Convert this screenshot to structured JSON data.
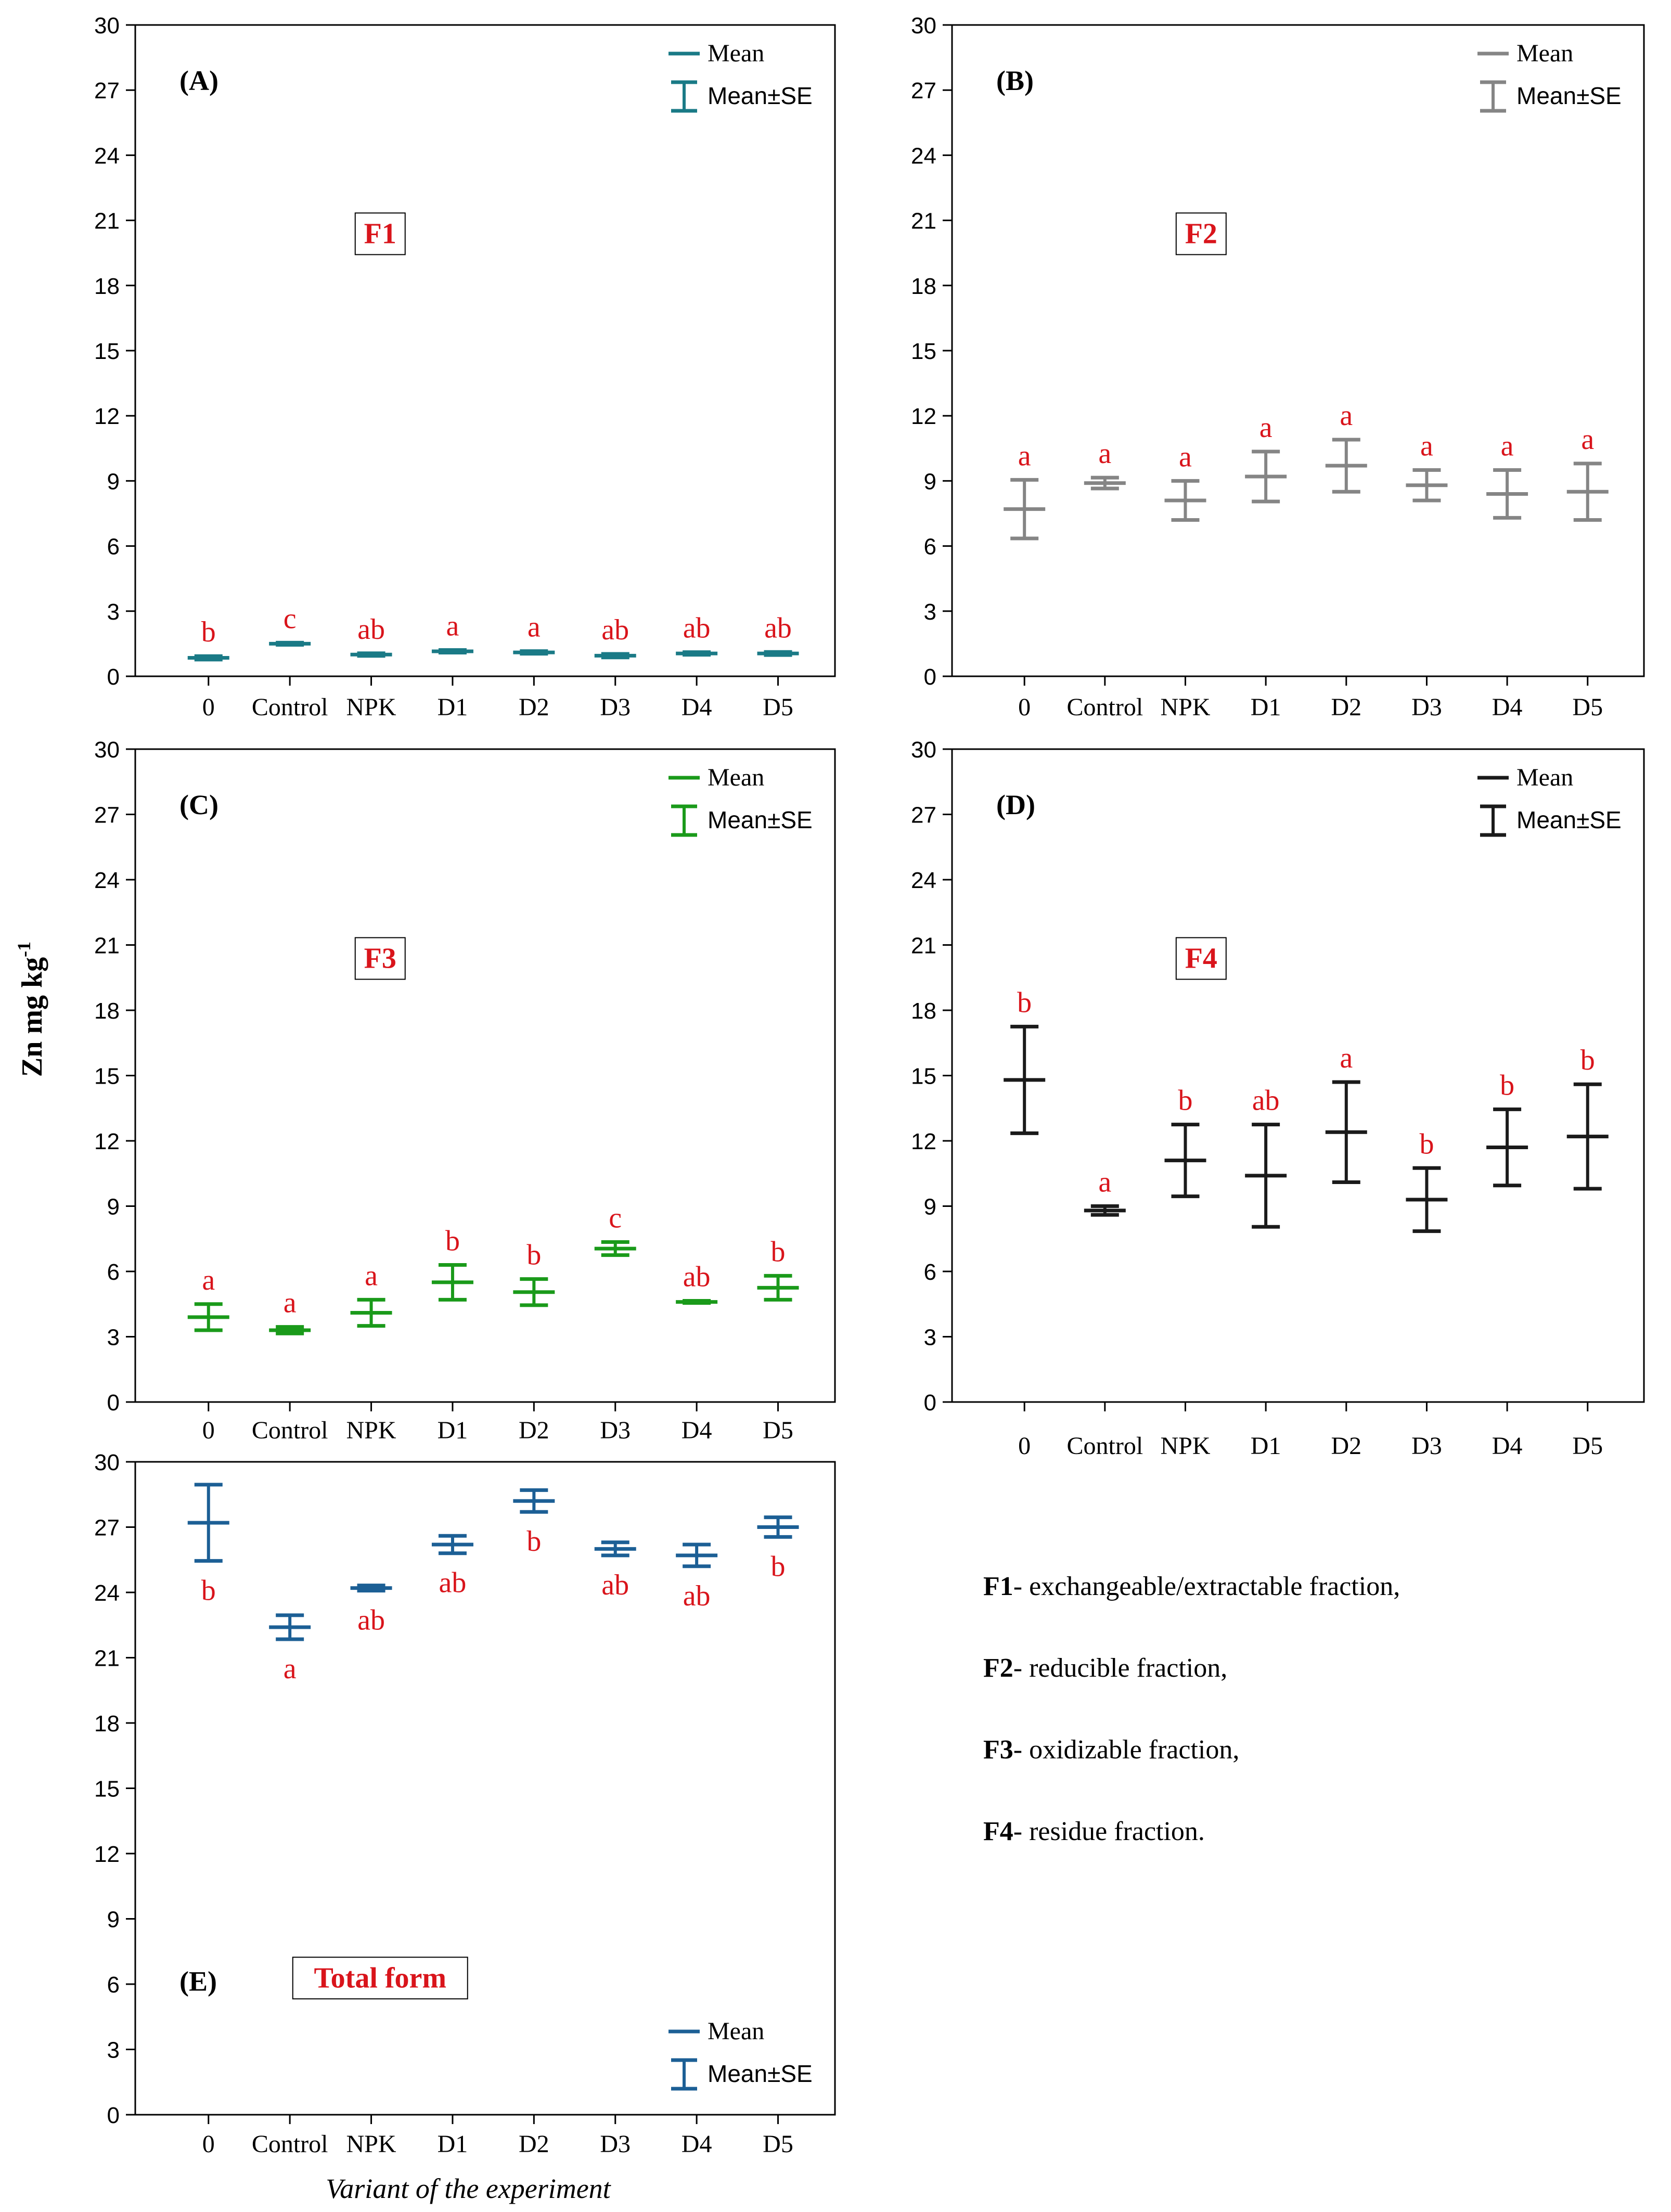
{
  "figure": {
    "y_axis_label": "Zn mg kg",
    "y_axis_label_sup": "-1",
    "x_axis_label": "Variant of the experiment"
  },
  "legend": {
    "mean": "Mean",
    "mean_se": "Mean±SE"
  },
  "chart_data": [
    {
      "type": "scatter",
      "panel": "(A)",
      "fraction_label": "F1",
      "color": "#1a7a86",
      "categories": [
        "0",
        "Control",
        "NPK",
        "D1",
        "D2",
        "D3",
        "D4",
        "D5"
      ],
      "mean": [
        0.85,
        1.5,
        1.0,
        1.15,
        1.1,
        0.95,
        1.05,
        1.05
      ],
      "se": [
        0.08,
        0.05,
        0.06,
        0.06,
        0.06,
        0.08,
        0.06,
        0.07
      ],
      "letters": [
        "b",
        "c",
        "ab",
        "a",
        "a",
        "ab",
        "ab",
        "ab"
      ],
      "ylim": [
        0,
        30
      ],
      "yticks": [
        0,
        3,
        6,
        9,
        12,
        15,
        18,
        21,
        24,
        27,
        30
      ],
      "grid": false,
      "legend_position": "top-right"
    },
    {
      "type": "scatter",
      "panel": "(B)",
      "fraction_label": "F2",
      "color": "#858585",
      "categories": [
        "0",
        "Control",
        "NPK",
        "D1",
        "D2",
        "D3",
        "D4",
        "D5"
      ],
      "mean": [
        7.7,
        8.9,
        8.1,
        9.2,
        9.7,
        8.8,
        8.4,
        8.5
      ],
      "se": [
        1.35,
        0.25,
        0.9,
        1.15,
        1.2,
        0.7,
        1.1,
        1.3
      ],
      "letters": [
        "a",
        "a",
        "a",
        "a",
        "a",
        "a",
        "a",
        "a"
      ],
      "ylim": [
        0,
        30
      ],
      "yticks": [
        0,
        3,
        6,
        9,
        12,
        15,
        18,
        21,
        24,
        27,
        30
      ],
      "grid": false,
      "legend_position": "top-right"
    },
    {
      "type": "scatter",
      "panel": "(C)",
      "fraction_label": "F3",
      "color": "#1a9a1a",
      "categories": [
        "0",
        "Control",
        "NPK",
        "D1",
        "D2",
        "D3",
        "D4",
        "D5"
      ],
      "mean": [
        3.9,
        3.3,
        4.1,
        5.5,
        5.05,
        7.05,
        4.6,
        5.25
      ],
      "se": [
        0.6,
        0.15,
        0.6,
        0.8,
        0.6,
        0.3,
        0.05,
        0.55
      ],
      "letters": [
        "a",
        "a",
        "a",
        "b",
        "b",
        "c",
        "ab",
        "b"
      ],
      "ylim": [
        0,
        30
      ],
      "yticks": [
        0,
        3,
        6,
        9,
        12,
        15,
        18,
        21,
        24,
        27,
        30
      ],
      "grid": false,
      "legend_position": "top-right"
    },
    {
      "type": "scatter",
      "panel": "(D)",
      "fraction_label": "F4",
      "color": "#1a1a1a",
      "categories": [
        "0",
        "Control",
        "NPK",
        "D1",
        "D2",
        "D3",
        "D4",
        "D5"
      ],
      "mean": [
        14.8,
        8.8,
        11.1,
        10.4,
        12.4,
        9.3,
        11.7,
        12.2
      ],
      "se": [
        2.45,
        0.2,
        1.65,
        2.35,
        2.3,
        1.45,
        1.75,
        2.4
      ],
      "letters": [
        "b",
        "a",
        "b",
        "ab",
        "a",
        "b",
        "b",
        "b"
      ],
      "ylim": [
        0,
        30
      ],
      "yticks": [
        0,
        3,
        6,
        9,
        12,
        15,
        18,
        21,
        24,
        27,
        30
      ],
      "grid": false,
      "legend_position": "top-right"
    },
    {
      "type": "scatter",
      "panel": "(E)",
      "fraction_label": "Total form",
      "color": "#1c5f95",
      "categories": [
        "0",
        "Control",
        "NPK",
        "D1",
        "D2",
        "D3",
        "D4",
        "D5"
      ],
      "mean": [
        27.2,
        22.4,
        24.2,
        26.2,
        28.2,
        26.0,
        25.7,
        27.0
      ],
      "se": [
        1.75,
        0.55,
        0.12,
        0.4,
        0.5,
        0.3,
        0.5,
        0.45
      ],
      "letters": [
        "b",
        "a",
        "ab",
        "ab",
        "b",
        "ab",
        "ab",
        "b"
      ],
      "ylim": [
        0,
        30
      ],
      "yticks": [
        0,
        3,
        6,
        9,
        12,
        15,
        18,
        21,
        24,
        27,
        30
      ],
      "grid": false,
      "legend_position": "bottom-right"
    }
  ],
  "notes": [
    {
      "key": "F1",
      "text": "- exchangeable/extractable fraction,"
    },
    {
      "key": "F2",
      "text": "- reducible fraction,"
    },
    {
      "key": "F3",
      "text": "- oxidizable fraction,"
    },
    {
      "key": "F4",
      "text": "- residue fraction."
    }
  ]
}
